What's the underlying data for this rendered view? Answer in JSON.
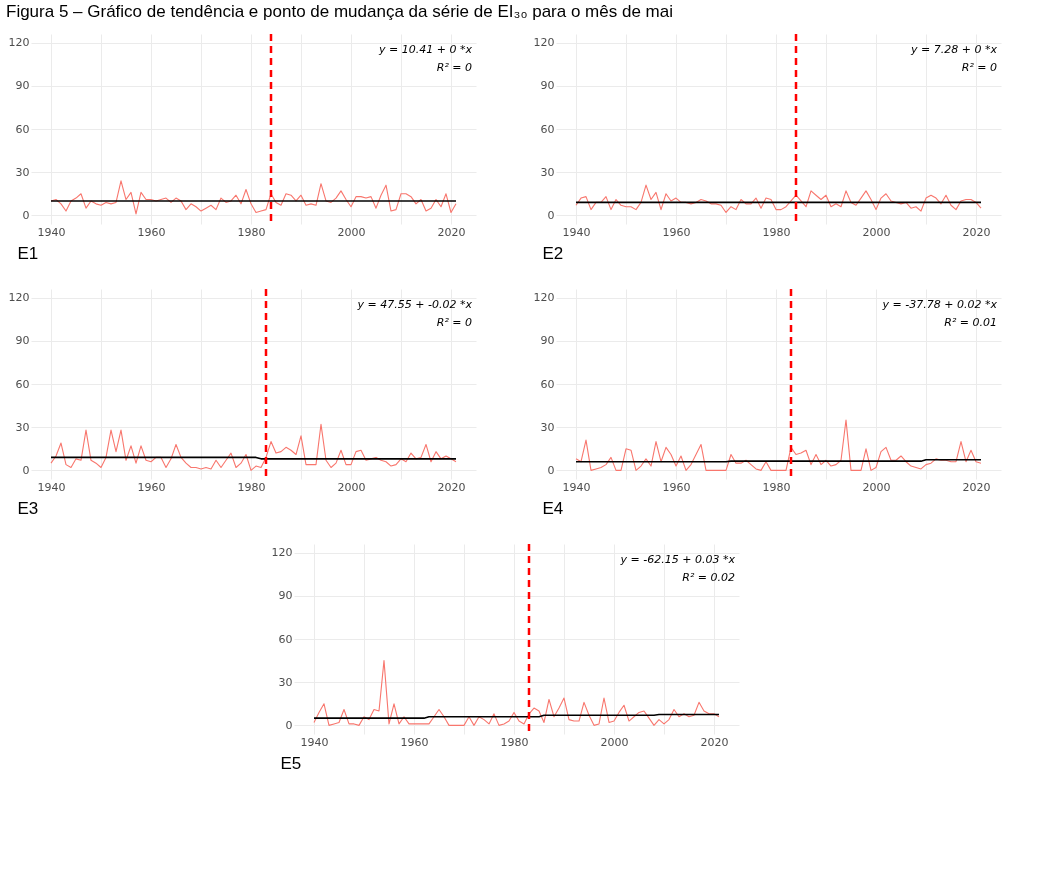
{
  "chart_data": [
    {
      "type": "line",
      "title": "Figura 5 – Gráfico de tendência e ponto de mudança da série de EI₃₀ para o mês de mai",
      "xlabel": "E1",
      "annotations": [
        "y = 10.41 + 0 *x",
        "R² = 0"
      ],
      "x": [
        1940,
        1941,
        1942,
        1943,
        1944,
        1945,
        1946,
        1947,
        1948,
        1949,
        1950,
        1951,
        1952,
        1953,
        1954,
        1955,
        1956,
        1957,
        1958,
        1959,
        1960,
        1961,
        1962,
        1963,
        1964,
        1965,
        1966,
        1967,
        1968,
        1969,
        1970,
        1971,
        1972,
        1973,
        1974,
        1975,
        1976,
        1977,
        1978,
        1979,
        1980,
        1981,
        1982,
        1983,
        1984,
        1985,
        1986,
        1987,
        1988,
        1989,
        1990,
        1991,
        1992,
        1993,
        1994,
        1995,
        1996,
        1997,
        1998,
        1999,
        2000,
        2001,
        2002,
        2003,
        2004,
        2005,
        2006,
        2007,
        2008,
        2009,
        2010,
        2011,
        2012,
        2013,
        2014,
        2015,
        2016,
        2017,
        2018,
        2019,
        2020,
        2021
      ],
      "series": [
        {
          "color": "#f8766d",
          "values": [
            10,
            11,
            8,
            3,
            10,
            12,
            15,
            5,
            10,
            8,
            7,
            9,
            8,
            9,
            24,
            11,
            16,
            1,
            16,
            11,
            11,
            10,
            11,
            12,
            9,
            12,
            10,
            4,
            8,
            6,
            3,
            5,
            7,
            4,
            12,
            9,
            10,
            14,
            8,
            18,
            8,
            2,
            3,
            4,
            15,
            9,
            7,
            15,
            14,
            10,
            14,
            7,
            8,
            7,
            22,
            10,
            9,
            12,
            17,
            11,
            6,
            13,
            13,
            12,
            13,
            5,
            14,
            21,
            3,
            4,
            15,
            15,
            13,
            8,
            11,
            3,
            5,
            11,
            6,
            15,
            2,
            8
          ]
        },
        {
          "color": "#000000",
          "x": [
            1940,
            2021
          ],
          "values": [
            10,
            10
          ]
        }
      ],
      "ref_lines": [
        {
          "axis": "x",
          "value": 1984,
          "color": "#ff0000",
          "line_style": "dashed"
        }
      ],
      "xlim": [
        1936,
        2025
      ],
      "ylim": [
        -6,
        126
      ],
      "xticks": [
        1940,
        {
          "value": 1950,
          "label": null
        },
        1960,
        {
          "value": 1970,
          "label": null
        },
        1980,
        {
          "value": 1990,
          "label": null
        },
        2000,
        {
          "value": 2010,
          "label": null
        },
        2020
      ],
      "yticks": [
        0,
        30,
        60,
        90,
        120
      ],
      "grid": true
    },
    {
      "type": "line",
      "xlabel": "E2",
      "annotations": [
        "y = 7.28 + 0 *x",
        "R² = 0"
      ],
      "x": [
        1940,
        1941,
        1942,
        1943,
        1944,
        1945,
        1946,
        1947,
        1948,
        1949,
        1950,
        1951,
        1952,
        1953,
        1954,
        1955,
        1956,
        1957,
        1958,
        1959,
        1960,
        1961,
        1962,
        1963,
        1964,
        1965,
        1966,
        1967,
        1968,
        1969,
        1970,
        1971,
        1972,
        1973,
        1974,
        1975,
        1976,
        1977,
        1978,
        1979,
        1980,
        1981,
        1982,
        1983,
        1984,
        1985,
        1986,
        1987,
        1988,
        1989,
        1990,
        1991,
        1992,
        1993,
        1994,
        1995,
        1996,
        1997,
        1998,
        1999,
        2000,
        2001,
        2002,
        2003,
        2004,
        2005,
        2006,
        2007,
        2008,
        2009,
        2010,
        2011,
        2012,
        2013,
        2014,
        2015,
        2016,
        2017,
        2018,
        2019,
        2020,
        2021
      ],
      "series": [
        {
          "color": "#f8766d",
          "values": [
            7,
            12,
            13,
            4,
            9,
            9,
            13,
            4,
            11,
            7,
            6,
            6,
            4,
            9,
            21,
            11,
            16,
            4,
            15,
            10,
            12,
            9,
            9,
            8,
            9,
            11,
            10,
            8,
            8,
            7,
            2,
            6,
            4,
            11,
            8,
            8,
            12,
            5,
            12,
            11,
            4,
            4,
            6,
            10,
            14,
            10,
            6,
            17,
            14,
            11,
            14,
            6,
            8,
            6,
            17,
            9,
            7,
            12,
            17,
            11,
            4,
            12,
            15,
            10,
            9,
            8,
            9,
            5,
            6,
            3,
            12,
            14,
            12,
            8,
            14,
            7,
            4,
            10,
            11,
            11,
            9,
            5
          ]
        },
        {
          "color": "#000000",
          "x": [
            1940,
            2021
          ],
          "values": [
            9,
            9
          ]
        }
      ],
      "ref_lines": [
        {
          "axis": "x",
          "value": 1984,
          "color": "#ff0000",
          "line_style": "dashed"
        }
      ],
      "xlim": [
        1936,
        2025
      ],
      "ylim": [
        -6,
        126
      ],
      "xticks": [
        1940,
        {
          "value": 1950,
          "label": null
        },
        1960,
        {
          "value": 1970,
          "label": null
        },
        1980,
        {
          "value": 1990,
          "label": null
        },
        2000,
        {
          "value": 2010,
          "label": null
        },
        2020
      ],
      "yticks": [
        0,
        30,
        60,
        90,
        120
      ],
      "grid": true
    },
    {
      "type": "line",
      "xlabel": "E3",
      "annotations": [
        "y = 47.55 + -0.02 *x",
        "R² = 0"
      ],
      "x": [
        1940,
        1941,
        1942,
        1943,
        1944,
        1945,
        1946,
        1947,
        1948,
        1949,
        1950,
        1951,
        1952,
        1953,
        1954,
        1955,
        1956,
        1957,
        1958,
        1959,
        1960,
        1961,
        1962,
        1963,
        1964,
        1965,
        1966,
        1967,
        1968,
        1969,
        1970,
        1971,
        1972,
        1973,
        1974,
        1975,
        1976,
        1977,
        1978,
        1979,
        1980,
        1981,
        1982,
        1983,
        1984,
        1985,
        1986,
        1987,
        1988,
        1989,
        1990,
        1991,
        1992,
        1993,
        1994,
        1995,
        1996,
        1997,
        1998,
        1999,
        2000,
        2001,
        2002,
        2003,
        2004,
        2005,
        2006,
        2007,
        2008,
        2009,
        2010,
        2011,
        2012,
        2013,
        2014,
        2015,
        2016,
        2017,
        2018,
        2019,
        2020,
        2021
      ],
      "series": [
        {
          "color": "#f8766d",
          "values": [
            5,
            10,
            19,
            4,
            2,
            8,
            7,
            28,
            7,
            5,
            2,
            9,
            28,
            13,
            28,
            7,
            17,
            5,
            17,
            7,
            6,
            9,
            9,
            2,
            8,
            18,
            9,
            5,
            2,
            2,
            1,
            2,
            1,
            7,
            2,
            7,
            12,
            2,
            5,
            11,
            0,
            3,
            2,
            9,
            20,
            12,
            13,
            16,
            14,
            11,
            24,
            4,
            4,
            4,
            32,
            7,
            2,
            5,
            14,
            4,
            4,
            13,
            14,
            7,
            8,
            9,
            7,
            6,
            3,
            4,
            8,
            6,
            12,
            8,
            9,
            18,
            6,
            13,
            8,
            10,
            8,
            6
          ]
        },
        {
          "color": "#000000",
          "x": [
            1940,
            1981,
            1982,
            2021
          ],
          "values": [
            9,
            9,
            8,
            8
          ]
        }
      ],
      "ref_lines": [
        {
          "axis": "x",
          "value": 1983,
          "color": "#ff0000",
          "line_style": "dashed"
        }
      ],
      "xlim": [
        1936,
        2025
      ],
      "ylim": [
        -6,
        126
      ],
      "xticks": [
        1940,
        {
          "value": 1950,
          "label": null
        },
        1960,
        {
          "value": 1970,
          "label": null
        },
        1980,
        {
          "value": 1990,
          "label": null
        },
        2000,
        {
          "value": 2010,
          "label": null
        },
        2020
      ],
      "yticks": [
        0,
        30,
        60,
        90,
        120
      ],
      "grid": true
    },
    {
      "type": "line",
      "xlabel": "E4",
      "annotations": [
        "y = -37.78 + 0.02 *x",
        "R² = 0.01"
      ],
      "x": [
        1940,
        1941,
        1942,
        1943,
        1944,
        1945,
        1946,
        1947,
        1948,
        1949,
        1950,
        1951,
        1952,
        1953,
        1954,
        1955,
        1956,
        1957,
        1958,
        1959,
        1960,
        1961,
        1962,
        1963,
        1964,
        1965,
        1966,
        1967,
        1968,
        1969,
        1970,
        1971,
        1972,
        1973,
        1974,
        1975,
        1976,
        1977,
        1978,
        1979,
        1980,
        1981,
        1982,
        1983,
        1984,
        1985,
        1986,
        1987,
        1988,
        1989,
        1990,
        1991,
        1992,
        1993,
        1994,
        1995,
        1996,
        1997,
        1998,
        1999,
        2000,
        2001,
        2002,
        2003,
        2004,
        2005,
        2006,
        2007,
        2008,
        2009,
        2010,
        2011,
        2012,
        2013,
        2014,
        2015,
        2016,
        2017,
        2018,
        2019,
        2020,
        2021
      ],
      "series": [
        {
          "color": "#f8766d",
          "values": [
            8,
            6,
            21,
            0,
            1,
            2,
            4,
            9,
            0,
            0,
            15,
            14,
            0,
            3,
            8,
            3,
            20,
            6,
            16,
            11,
            3,
            10,
            0,
            4,
            11,
            18,
            0,
            0,
            0,
            0,
            0,
            11,
            5,
            5,
            7,
            4,
            1,
            0,
            6,
            0,
            0,
            0,
            0,
            16,
            11,
            12,
            14,
            4,
            11,
            4,
            7,
            3,
            4,
            7,
            35,
            0,
            0,
            0,
            15,
            0,
            2,
            13,
            16,
            7,
            7,
            10,
            6,
            3,
            2,
            1,
            4,
            5,
            8,
            7,
            7,
            6,
            6,
            20,
            6,
            14,
            6,
            5
          ]
        },
        {
          "color": "#000000",
          "x": [
            1940,
            1970,
            1971,
            2009,
            2010,
            2021
          ],
          "values": [
            6,
            6,
            6.4,
            6.4,
            7.4,
            7.4
          ]
        }
      ],
      "ref_lines": [
        {
          "axis": "x",
          "value": 1983,
          "color": "#ff0000",
          "line_style": "dashed"
        }
      ],
      "xlim": [
        1936,
        2025
      ],
      "ylim": [
        -6,
        126
      ],
      "xticks": [
        1940,
        {
          "value": 1950,
          "label": null
        },
        1960,
        {
          "value": 1970,
          "label": null
        },
        1980,
        {
          "value": 1990,
          "label": null
        },
        2000,
        {
          "value": 2010,
          "label": null
        },
        2020
      ],
      "yticks": [
        0,
        30,
        60,
        90,
        120
      ],
      "grid": true
    },
    {
      "type": "line",
      "xlabel": "E5",
      "annotations": [
        "y = -62.15 + 0.03 *x",
        "R² = 0.02"
      ],
      "x": [
        1940,
        1941,
        1942,
        1943,
        1944,
        1945,
        1946,
        1947,
        1948,
        1949,
        1950,
        1951,
        1952,
        1953,
        1954,
        1955,
        1956,
        1957,
        1958,
        1959,
        1960,
        1961,
        1962,
        1963,
        1964,
        1965,
        1966,
        1967,
        1968,
        1969,
        1970,
        1971,
        1972,
        1973,
        1974,
        1975,
        1976,
        1977,
        1978,
        1979,
        1980,
        1981,
        1982,
        1983,
        1984,
        1985,
        1986,
        1987,
        1988,
        1989,
        1990,
        1991,
        1992,
        1993,
        1994,
        1995,
        1996,
        1997,
        1998,
        1999,
        2000,
        2001,
        2002,
        2003,
        2004,
        2005,
        2006,
        2007,
        2008,
        2009,
        2010,
        2011,
        2012,
        2013,
        2014,
        2015,
        2016,
        2017,
        2018,
        2019,
        2020,
        2021
      ],
      "series": [
        {
          "color": "#f8766d",
          "values": [
            2,
            9,
            15,
            0,
            1,
            2,
            11,
            1,
            1,
            0,
            6,
            4,
            11,
            10,
            45,
            1,
            15,
            1,
            6,
            1,
            1,
            1,
            1,
            1,
            6,
            11,
            6,
            0,
            0,
            0,
            0,
            6,
            0,
            6,
            4,
            1,
            8,
            0,
            1,
            3,
            9,
            3,
            1,
            8,
            12,
            10,
            2,
            18,
            6,
            12,
            19,
            4,
            3,
            3,
            16,
            7,
            0,
            1,
            19,
            2,
            3,
            9,
            14,
            3,
            6,
            9,
            10,
            5,
            0,
            4,
            1,
            4,
            11,
            6,
            8,
            6,
            7,
            16,
            10,
            8,
            8,
            6
          ]
        },
        {
          "color": "#000000",
          "x": [
            1940,
            1962,
            1963,
            1985,
            1986,
            2008,
            2009,
            2021
          ],
          "values": [
            5,
            5,
            6,
            6,
            7,
            7,
            7.5,
            7.5
          ]
        }
      ],
      "ref_lines": [
        {
          "axis": "x",
          "value": 1983,
          "color": "#ff0000",
          "line_style": "dashed"
        }
      ],
      "xlim": [
        1936,
        2025
      ],
      "ylim": [
        -6,
        126
      ],
      "xticks": [
        1940,
        {
          "value": 1950,
          "label": null
        },
        1960,
        {
          "value": 1970,
          "label": null
        },
        1980,
        {
          "value": 1990,
          "label": null
        },
        2000,
        {
          "value": 2010,
          "label": null
        },
        2020
      ],
      "yticks": [
        0,
        30,
        60,
        90,
        120
      ],
      "grid": true
    }
  ]
}
